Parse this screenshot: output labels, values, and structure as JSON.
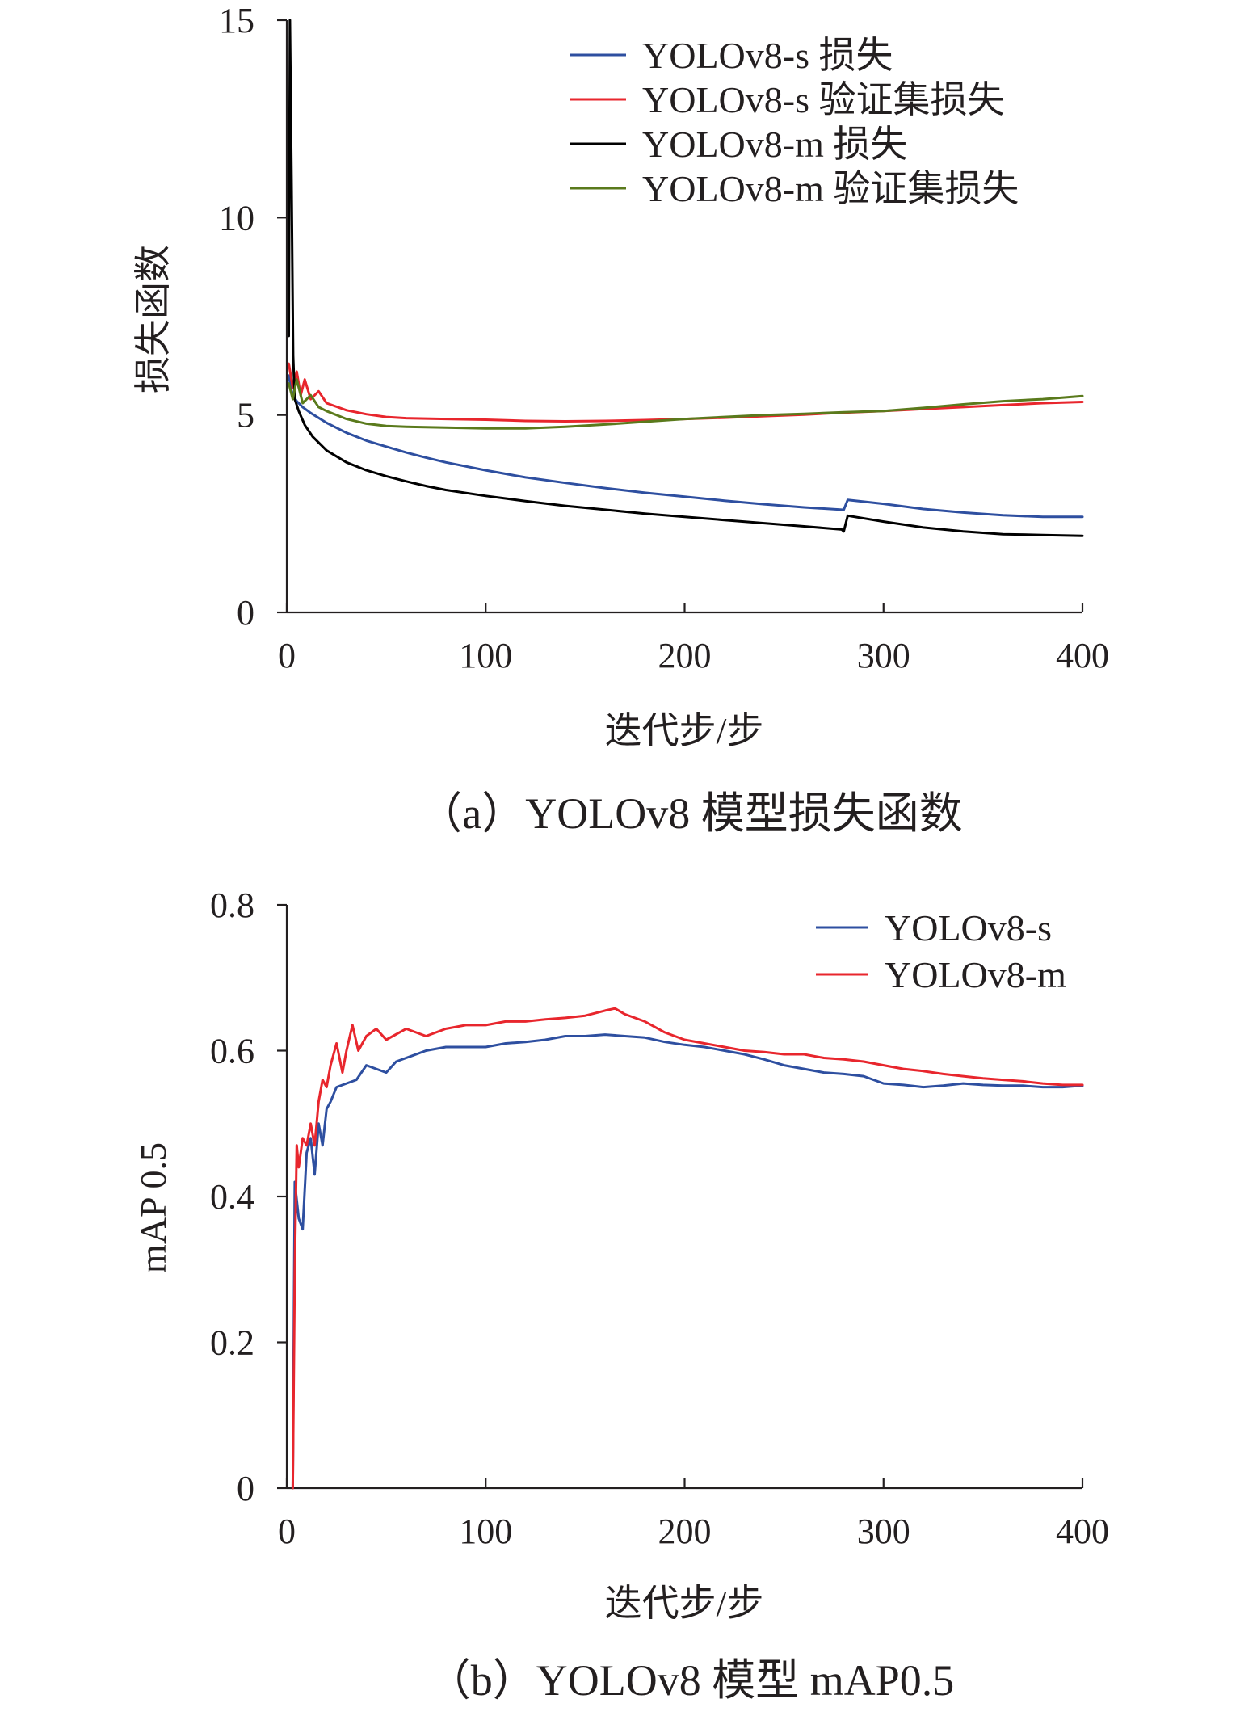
{
  "chart_data": [
    {
      "type": "line",
      "title": "",
      "caption": "（a）YOLOv8 模型损失函数",
      "xlabel": "迭代步/步",
      "ylabel": "损失函数",
      "xlim": [
        0,
        400
      ],
      "ylim": [
        0,
        15
      ],
      "xticks": [
        0,
        100,
        200,
        300,
        400
      ],
      "yticks": [
        0,
        5,
        10,
        15
      ],
      "xtick_labels": [
        "0",
        "100",
        "200",
        "300",
        "400"
      ],
      "ytick_labels": [
        "0",
        "5",
        "10",
        "15"
      ],
      "grid": false,
      "legend_position": "top-right",
      "series": [
        {
          "name": "YOLOv8-s 损失",
          "color": "#2e4fa0",
          "x": [
            1,
            2,
            3,
            5,
            8,
            12,
            20,
            30,
            40,
            50,
            60,
            70,
            80,
            100,
            120,
            140,
            160,
            180,
            200,
            220,
            240,
            260,
            279,
            280,
            282,
            300,
            320,
            340,
            360,
            380,
            400
          ],
          "y": [
            6.0,
            5.7,
            5.5,
            5.35,
            5.2,
            5.05,
            4.8,
            4.55,
            4.35,
            4.2,
            4.05,
            3.92,
            3.8,
            3.6,
            3.42,
            3.28,
            3.15,
            3.03,
            2.93,
            2.83,
            2.74,
            2.66,
            2.6,
            2.6,
            2.85,
            2.75,
            2.62,
            2.53,
            2.46,
            2.42,
            2.42
          ]
        },
        {
          "name": "YOLOv8-s 验证集损失",
          "color": "#e8262d",
          "x": [
            1,
            3,
            5,
            7,
            9,
            12,
            16,
            20,
            30,
            40,
            50,
            60,
            80,
            100,
            120,
            140,
            160,
            180,
            200,
            220,
            240,
            260,
            280,
            300,
            320,
            340,
            360,
            380,
            400
          ],
          "y": [
            6.3,
            5.7,
            6.1,
            5.5,
            5.9,
            5.4,
            5.6,
            5.3,
            5.12,
            5.02,
            4.95,
            4.92,
            4.9,
            4.88,
            4.85,
            4.84,
            4.85,
            4.87,
            4.9,
            4.93,
            4.97,
            5.01,
            5.06,
            5.1,
            5.15,
            5.2,
            5.25,
            5.3,
            5.33
          ]
        },
        {
          "name": "YOLOv8-m 损失",
          "color": "#000000",
          "x": [
            1,
            1.6,
            2.4,
            3.2,
            4,
            6,
            9,
            13,
            20,
            30,
            40,
            50,
            60,
            70,
            80,
            100,
            120,
            140,
            160,
            180,
            200,
            220,
            240,
            260,
            279,
            280,
            282,
            300,
            320,
            340,
            360,
            380,
            400
          ],
          "y": [
            7.0,
            15.0,
            11.0,
            6.5,
            5.4,
            5.1,
            4.75,
            4.45,
            4.1,
            3.8,
            3.6,
            3.45,
            3.32,
            3.2,
            3.1,
            2.95,
            2.82,
            2.7,
            2.6,
            2.5,
            2.42,
            2.34,
            2.26,
            2.18,
            2.1,
            2.05,
            2.45,
            2.3,
            2.15,
            2.05,
            1.98,
            1.96,
            1.94
          ]
        },
        {
          "name": "YOLOv8-m 验证集损失",
          "color": "#5a7a1c",
          "x": [
            1,
            3,
            5,
            8,
            12,
            16,
            20,
            30,
            40,
            50,
            60,
            80,
            100,
            120,
            140,
            160,
            180,
            200,
            220,
            240,
            260,
            280,
            300,
            320,
            340,
            360,
            380,
            400
          ],
          "y": [
            5.8,
            5.4,
            5.9,
            5.3,
            5.5,
            5.2,
            5.1,
            4.9,
            4.78,
            4.72,
            4.7,
            4.68,
            4.66,
            4.66,
            4.7,
            4.76,
            4.83,
            4.9,
            4.95,
            5.0,
            5.03,
            5.07,
            5.1,
            5.18,
            5.27,
            5.35,
            5.4,
            5.48
          ]
        }
      ]
    },
    {
      "type": "line",
      "title": "",
      "caption": "（b）YOLOv8 模型 mAP0.5",
      "xlabel": "迭代步/步",
      "ylabel": "mAP 0.5",
      "xlim": [
        0,
        400
      ],
      "ylim": [
        0,
        0.8
      ],
      "xticks": [
        0,
        100,
        200,
        300,
        400
      ],
      "yticks": [
        0,
        0.2,
        0.4,
        0.6,
        0.8
      ],
      "xtick_labels": [
        "0",
        "100",
        "200",
        "300",
        "400"
      ],
      "ytick_labels": [
        "0",
        "0.2",
        "0.4",
        "0.6",
        "0.8"
      ],
      "grid": false,
      "legend_position": "top-right",
      "series": [
        {
          "name": "YOLOv8-s",
          "color": "#2e4fa0",
          "x": [
            3,
            4,
            6,
            8,
            10,
            12,
            14,
            16,
            18,
            20,
            22,
            25,
            30,
            35,
            40,
            45,
            50,
            55,
            60,
            70,
            80,
            90,
            100,
            110,
            120,
            130,
            140,
            150,
            160,
            170,
            180,
            190,
            200,
            210,
            220,
            230,
            240,
            250,
            260,
            270,
            280,
            290,
            300,
            310,
            320,
            330,
            340,
            350,
            360,
            370,
            380,
            390,
            400
          ],
          "y": [
            0.0,
            0.42,
            0.37,
            0.355,
            0.46,
            0.48,
            0.43,
            0.5,
            0.47,
            0.52,
            0.53,
            0.55,
            0.555,
            0.56,
            0.58,
            0.575,
            0.57,
            0.585,
            0.59,
            0.6,
            0.605,
            0.605,
            0.605,
            0.61,
            0.612,
            0.615,
            0.62,
            0.62,
            0.622,
            0.62,
            0.618,
            0.612,
            0.608,
            0.605,
            0.6,
            0.595,
            0.588,
            0.58,
            0.575,
            0.57,
            0.568,
            0.565,
            0.555,
            0.553,
            0.55,
            0.552,
            0.555,
            0.553,
            0.552,
            0.552,
            0.55,
            0.55,
            0.552
          ]
        },
        {
          "name": "YOLOv8-m",
          "color": "#e8262d",
          "x": [
            3,
            4,
            5,
            6,
            8,
            10,
            12,
            14,
            16,
            18,
            20,
            22,
            25,
            28,
            30,
            33,
            36,
            40,
            45,
            50,
            60,
            70,
            80,
            90,
            100,
            110,
            120,
            130,
            140,
            150,
            160,
            165,
            170,
            180,
            190,
            200,
            210,
            220,
            230,
            240,
            250,
            260,
            270,
            280,
            290,
            300,
            310,
            320,
            330,
            340,
            350,
            360,
            370,
            380,
            390,
            400
          ],
          "y": [
            0.0,
            0.3,
            0.47,
            0.44,
            0.48,
            0.47,
            0.5,
            0.47,
            0.53,
            0.56,
            0.55,
            0.58,
            0.61,
            0.57,
            0.6,
            0.635,
            0.6,
            0.62,
            0.63,
            0.615,
            0.63,
            0.62,
            0.63,
            0.635,
            0.635,
            0.64,
            0.64,
            0.643,
            0.645,
            0.648,
            0.655,
            0.658,
            0.65,
            0.64,
            0.625,
            0.615,
            0.61,
            0.605,
            0.6,
            0.598,
            0.595,
            0.595,
            0.59,
            0.588,
            0.585,
            0.58,
            0.575,
            0.572,
            0.568,
            0.565,
            0.562,
            0.56,
            0.558,
            0.555,
            0.553,
            0.553
          ]
        }
      ]
    }
  ]
}
